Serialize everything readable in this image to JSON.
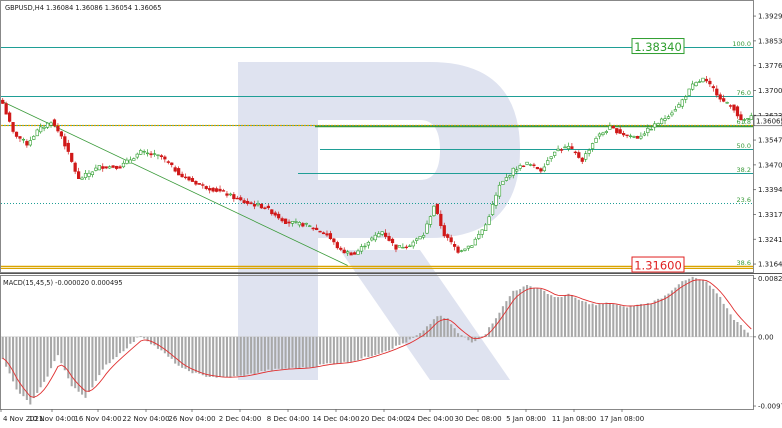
{
  "header": {
    "symbol_line": "GBPUSD,H4  1.36084 1.36086 1.36054 1.36065",
    "macd_line": "MACD(15,45,5) -0.000020 0.000495"
  },
  "colors": {
    "bull": "#2e9e2e",
    "bear": "#d01818",
    "fib_line": "#1f9e96",
    "fib_label": "#3a9a3a",
    "price_line": "#d9a400",
    "trend_line": "#3a9a3a",
    "macd_hist": "#a8a8a8",
    "macd_signal": "#e03030",
    "watermark": "#dfe3f0"
  },
  "chart_data": [
    {
      "type": "candlestick",
      "title": "GBPUSD,H4",
      "ohlc_readout": {
        "open": 1.36084,
        "high": 1.36086,
        "low": 1.36054,
        "close": 1.36065
      },
      "current_price_label": "1.36065",
      "y_ticks": [
        "1.39295",
        "1.38530",
        "1.37765",
        "1.37000",
        "1.36235",
        "1.35470",
        "1.34705",
        "1.33940",
        "1.33175",
        "1.32410",
        "1.31645"
      ],
      "x_ticks": [
        "4 Nov 2021",
        "10 Nov 04:00",
        "16 Nov 04:00",
        "22 Nov 04:00",
        "26 Nov 04:00",
        "2 Dec 04:00",
        "8 Dec 04:00",
        "14 Dec 04:00",
        "20 Dec 04:00",
        "24 Dec 04:00",
        "30 Dec 08:00",
        "5 Jan 08:00",
        "11 Jan 08:00",
        "17 Jan 08:00"
      ],
      "ylim": [
        1.314,
        1.3976
      ],
      "fibonacci_levels": [
        {
          "label": "100.0",
          "price": 1.3834
        },
        {
          "label": "76.0",
          "price": 1.3683
        },
        {
          "label": "61.8",
          "price": 1.3594
        },
        {
          "label": "50.0",
          "price": 1.3519
        },
        {
          "label": "38.2",
          "price": 1.3445
        },
        {
          "label": "23.6",
          "price": 1.3353
        },
        {
          "label": "38.6",
          "price": 1.316
        }
      ],
      "annotations": [
        {
          "text": "1.38340",
          "price": 1.3834,
          "color": "#2e9e2e"
        },
        {
          "text": "1.31600",
          "price": 1.316,
          "color": "#e02020"
        }
      ],
      "horizontal_line": {
        "price": 1.3594
      },
      "trend_line": {
        "from": {
          "date": "4 Nov 2021",
          "price": 1.3668
        },
        "to": {
          "date": "13 Dec 2021",
          "price": 1.316
        }
      },
      "path_anchors": [
        {
          "bar": 0,
          "price": 1.366
        },
        {
          "bar": 3,
          "price": 1.357
        },
        {
          "bar": 7,
          "price": 1.3535
        },
        {
          "bar": 10,
          "price": 1.3575
        },
        {
          "bar": 14,
          "price": 1.3605
        },
        {
          "bar": 17,
          "price": 1.356
        },
        {
          "bar": 22,
          "price": 1.3425
        },
        {
          "bar": 28,
          "price": 1.3465
        },
        {
          "bar": 34,
          "price": 1.3465
        },
        {
          "bar": 40,
          "price": 1.351
        },
        {
          "bar": 46,
          "price": 1.3495
        },
        {
          "bar": 52,
          "price": 1.3435
        },
        {
          "bar": 58,
          "price": 1.3405
        },
        {
          "bar": 64,
          "price": 1.3385
        },
        {
          "bar": 70,
          "price": 1.3355
        },
        {
          "bar": 76,
          "price": 1.334
        },
        {
          "bar": 82,
          "price": 1.3295
        },
        {
          "bar": 88,
          "price": 1.3285
        },
        {
          "bar": 94,
          "price": 1.3255
        },
        {
          "bar": 98,
          "price": 1.3205
        },
        {
          "bar": 102,
          "price": 1.3195
        },
        {
          "bar": 106,
          "price": 1.3235
        },
        {
          "bar": 110,
          "price": 1.3265
        },
        {
          "bar": 114,
          "price": 1.3215
        },
        {
          "bar": 118,
          "price": 1.3225
        },
        {
          "bar": 122,
          "price": 1.3255
        },
        {
          "bar": 125,
          "price": 1.3345
        },
        {
          "bar": 128,
          "price": 1.3255
        },
        {
          "bar": 132,
          "price": 1.3205
        },
        {
          "bar": 136,
          "price": 1.3225
        },
        {
          "bar": 140,
          "price": 1.3285
        },
        {
          "bar": 144,
          "price": 1.3405
        },
        {
          "bar": 148,
          "price": 1.3455
        },
        {
          "bar": 152,
          "price": 1.3475
        },
        {
          "bar": 156,
          "price": 1.3455
        },
        {
          "bar": 160,
          "price": 1.3515
        },
        {
          "bar": 164,
          "price": 1.3525
        },
        {
          "bar": 168,
          "price": 1.3485
        },
        {
          "bar": 172,
          "price": 1.3555
        },
        {
          "bar": 176,
          "price": 1.3585
        },
        {
          "bar": 180,
          "price": 1.3565
        },
        {
          "bar": 184,
          "price": 1.3555
        },
        {
          "bar": 188,
          "price": 1.3585
        },
        {
          "bar": 192,
          "price": 1.3615
        },
        {
          "bar": 196,
          "price": 1.3655
        },
        {
          "bar": 200,
          "price": 1.3715
        },
        {
          "bar": 203,
          "price": 1.3735
        },
        {
          "bar": 206,
          "price": 1.3705
        },
        {
          "bar": 209,
          "price": 1.3665
        },
        {
          "bar": 212,
          "price": 1.3645
        },
        {
          "bar": 214,
          "price": 1.3605
        },
        {
          "bar": 217,
          "price": 1.3617
        }
      ]
    },
    {
      "type": "bar",
      "title": "MACD(15,45,5)",
      "series": [
        {
          "name": "MACD",
          "values": [
            -2e-05
          ]
        },
        {
          "name": "Signal",
          "values": [
            0.000495
          ]
        }
      ],
      "y_ticks": [
        "0.008267",
        "0.00",
        "-0.009782"
      ],
      "ylim": [
        -0.0102,
        0.0086
      ],
      "macd_anchors": [
        {
          "bar": 0,
          "value": -0.003
        },
        {
          "bar": 4,
          "value": -0.0075
        },
        {
          "bar": 8,
          "value": -0.0095
        },
        {
          "bar": 12,
          "value": -0.0065
        },
        {
          "bar": 16,
          "value": -0.0025
        },
        {
          "bar": 20,
          "value": -0.007
        },
        {
          "bar": 24,
          "value": -0.0085
        },
        {
          "bar": 30,
          "value": -0.004
        },
        {
          "bar": 36,
          "value": -0.0015
        },
        {
          "bar": 40,
          "value": 0.0002
        },
        {
          "bar": 46,
          "value": -0.002
        },
        {
          "bar": 52,
          "value": -0.0045
        },
        {
          "bar": 58,
          "value": -0.0055
        },
        {
          "bar": 64,
          "value": -0.0058
        },
        {
          "bar": 70,
          "value": -0.0055
        },
        {
          "bar": 76,
          "value": -0.0048
        },
        {
          "bar": 82,
          "value": -0.0045
        },
        {
          "bar": 88,
          "value": -0.0044
        },
        {
          "bar": 94,
          "value": -0.0038
        },
        {
          "bar": 100,
          "value": -0.0036
        },
        {
          "bar": 106,
          "value": -0.0028
        },
        {
          "bar": 112,
          "value": -0.0018
        },
        {
          "bar": 118,
          "value": -0.0005
        },
        {
          "bar": 122,
          "value": 0.0008
        },
        {
          "bar": 126,
          "value": 0.003
        },
        {
          "bar": 129,
          "value": 0.0025
        },
        {
          "bar": 132,
          "value": 0.0005
        },
        {
          "bar": 136,
          "value": -0.0008
        },
        {
          "bar": 140,
          "value": 0.0005
        },
        {
          "bar": 144,
          "value": 0.0035
        },
        {
          "bar": 148,
          "value": 0.0065
        },
        {
          "bar": 152,
          "value": 0.0072
        },
        {
          "bar": 156,
          "value": 0.0068
        },
        {
          "bar": 160,
          "value": 0.0055
        },
        {
          "bar": 164,
          "value": 0.006
        },
        {
          "bar": 168,
          "value": 0.005
        },
        {
          "bar": 172,
          "value": 0.0045
        },
        {
          "bar": 176,
          "value": 0.0048
        },
        {
          "bar": 180,
          "value": 0.0042
        },
        {
          "bar": 184,
          "value": 0.0045
        },
        {
          "bar": 188,
          "value": 0.0048
        },
        {
          "bar": 192,
          "value": 0.0058
        },
        {
          "bar": 196,
          "value": 0.0075
        },
        {
          "bar": 200,
          "value": 0.0084
        },
        {
          "bar": 204,
          "value": 0.0078
        },
        {
          "bar": 208,
          "value": 0.0055
        },
        {
          "bar": 212,
          "value": 0.0025
        },
        {
          "bar": 217,
          "value": 0.0002
        }
      ]
    }
  ]
}
